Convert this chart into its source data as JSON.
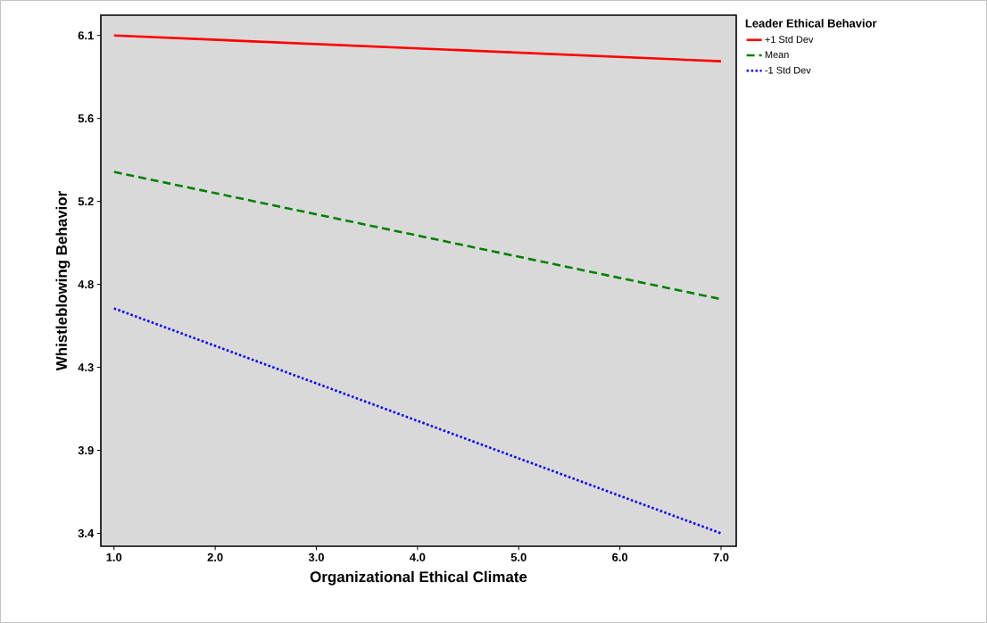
{
  "chart_data": {
    "type": "line",
    "xlabel": "Organizational Ethical Climate",
    "ylabel": "Whistleblowing Behavior",
    "legend_title": "Leader Ethical Behavior",
    "legend": "top right",
    "x": [
      1,
      7
    ],
    "xlim": [
      0.87,
      7.15
    ],
    "xticks": [
      {
        "value": 1,
        "label": "1.0"
      },
      {
        "value": 2,
        "label": "2.0"
      },
      {
        "value": 3,
        "label": "3.0"
      },
      {
        "value": 4,
        "label": "4.0"
      },
      {
        "value": 5,
        "label": "5.0"
      },
      {
        "value": 6,
        "label": "6.0"
      },
      {
        "value": 7,
        "label": "7.0"
      }
    ],
    "ylim": [
      3.33,
      6.21
    ],
    "yticks": [
      6.1,
      {
        "value": 5.65,
        "label": "5.6"
      },
      5.2,
      {
        "value": 4.75,
        "label": "4.8"
      },
      4.3,
      {
        "value": 3.85,
        "label": "3.9"
      },
      3.4
    ],
    "grid": false,
    "marker": "none",
    "series": [
      {
        "name": "+1 Std Dev",
        "color": "#ff0000",
        "line_style": "solid",
        "values": [
          6.1,
          5.96
        ]
      },
      {
        "name": "Mean",
        "color": "#008000",
        "line_style": "dashed",
        "values": [
          5.36,
          4.67
        ]
      },
      {
        "name": "-1 Std Dev",
        "color": "#0000ff",
        "line_style": "dotted",
        "values": [
          4.62,
          3.4
        ]
      }
    ]
  }
}
